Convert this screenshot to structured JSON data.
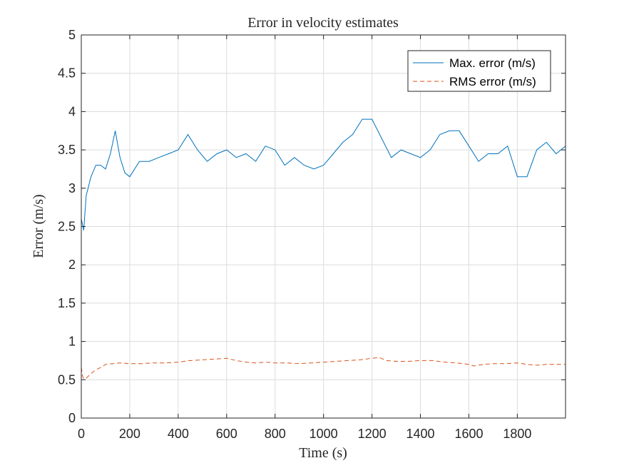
{
  "chart_data": {
    "type": "line",
    "title": "Error in velocity estimates",
    "xlabel": "Time (s)",
    "ylabel": "Error (m/s)",
    "xlim": [
      0,
      1999
    ],
    "ylim": [
      0,
      5
    ],
    "xticks": [
      0,
      200,
      400,
      600,
      800,
      1000,
      1200,
      1400,
      1600,
      1800
    ],
    "xtick_labels": [
      "0",
      "200",
      "400",
      "600",
      "800",
      "1000",
      "1200",
      "1400",
      "1600",
      "1800"
    ],
    "yticks": [
      0,
      0.5,
      1,
      1.5,
      2,
      2.5,
      3,
      3.5,
      4,
      4.5,
      5
    ],
    "ytick_labels": [
      "0",
      "0.5",
      "1",
      "1.5",
      "2",
      "2.5",
      "3",
      "3.5",
      "4",
      "4.5",
      "5"
    ],
    "grid": true,
    "legend_position": "top-right",
    "series": [
      {
        "name": "Max. error (m/s)",
        "color": "#0072BD",
        "style": "solid",
        "x": [
          0,
          10,
          20,
          40,
          60,
          80,
          100,
          120,
          140,
          160,
          180,
          200,
          240,
          280,
          320,
          360,
          400,
          440,
          480,
          520,
          560,
          600,
          640,
          680,
          720,
          760,
          800,
          840,
          880,
          920,
          960,
          1000,
          1040,
          1080,
          1120,
          1160,
          1200,
          1240,
          1280,
          1320,
          1360,
          1400,
          1440,
          1480,
          1520,
          1560,
          1600,
          1640,
          1680,
          1720,
          1760,
          1800,
          1840,
          1880,
          1920,
          1960,
          1999
        ],
        "values": [
          2.6,
          2.45,
          2.9,
          3.15,
          3.3,
          3.3,
          3.25,
          3.45,
          3.75,
          3.4,
          3.2,
          3.15,
          3.35,
          3.35,
          3.4,
          3.45,
          3.5,
          3.7,
          3.5,
          3.35,
          3.45,
          3.5,
          3.4,
          3.45,
          3.35,
          3.55,
          3.5,
          3.3,
          3.4,
          3.3,
          3.25,
          3.3,
          3.45,
          3.6,
          3.7,
          3.9,
          3.9,
          3.65,
          3.4,
          3.5,
          3.45,
          3.4,
          3.5,
          3.7,
          3.75,
          3.75,
          3.55,
          3.35,
          3.45,
          3.45,
          3.55,
          3.15,
          3.15,
          3.5,
          3.6,
          3.45,
          3.55
        ]
      },
      {
        "name": "RMS error (m/s)",
        "color": "#D95319",
        "style": "dashed",
        "x": [
          0,
          5,
          10,
          20,
          40,
          60,
          80,
          100,
          130,
          160,
          200,
          250,
          300,
          350,
          400,
          450,
          500,
          550,
          600,
          640,
          680,
          720,
          760,
          800,
          850,
          900,
          950,
          1000,
          1050,
          1100,
          1150,
          1200,
          1230,
          1260,
          1300,
          1350,
          1400,
          1450,
          1500,
          1550,
          1600,
          1620,
          1660,
          1700,
          1750,
          1800,
          1840,
          1880,
          1920,
          1960,
          1999
        ],
        "values": [
          0.66,
          0.55,
          0.51,
          0.52,
          0.58,
          0.63,
          0.66,
          0.7,
          0.71,
          0.72,
          0.71,
          0.71,
          0.72,
          0.72,
          0.73,
          0.75,
          0.76,
          0.77,
          0.78,
          0.75,
          0.73,
          0.72,
          0.73,
          0.72,
          0.72,
          0.71,
          0.72,
          0.73,
          0.74,
          0.75,
          0.76,
          0.78,
          0.79,
          0.75,
          0.74,
          0.74,
          0.75,
          0.75,
          0.73,
          0.72,
          0.7,
          0.68,
          0.7,
          0.71,
          0.71,
          0.72,
          0.7,
          0.69,
          0.7,
          0.7,
          0.7
        ]
      }
    ]
  }
}
